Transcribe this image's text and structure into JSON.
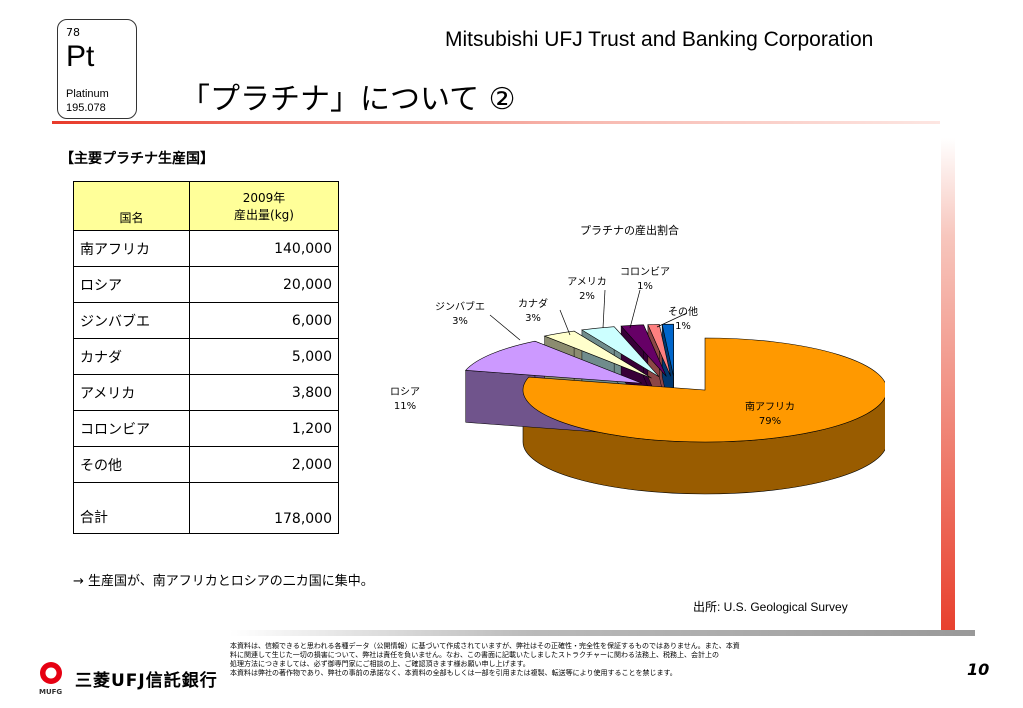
{
  "element": {
    "number": "78",
    "symbol": "Pt",
    "name": "Platinum",
    "mass": "195.078"
  },
  "header": {
    "company": "Mitsubishi UFJ Trust and Banking Corporation",
    "title": "「プラチナ」について ②"
  },
  "section": {
    "label": "【主要プラチナ生産国】"
  },
  "table": {
    "col1_header": "国名",
    "col2_header_line1": "2009年",
    "col2_header_line2": "産出量(kg)",
    "rows": [
      {
        "country": "南アフリカ",
        "value": "140,000"
      },
      {
        "country": "ロシア",
        "value": "20,000"
      },
      {
        "country": "ジンバブエ",
        "value": "6,000"
      },
      {
        "country": "カナダ",
        "value": "5,000"
      },
      {
        "country": "アメリカ",
        "value": "3,800"
      },
      {
        "country": "コロンビア",
        "value": "1,200"
      },
      {
        "country": "その他",
        "value": "2,000"
      }
    ],
    "total": {
      "country": "合計",
      "value": "178,000"
    }
  },
  "chart_data": {
    "type": "pie",
    "title": "プラチナの産出割合",
    "categories": [
      "南アフリカ",
      "ロシア",
      "ジンバブエ",
      "カナダ",
      "アメリカ",
      "コロンビア",
      "その他"
    ],
    "values": [
      79,
      11,
      3,
      3,
      2,
      1,
      1
    ],
    "labels": [
      "79%",
      "11%",
      "3%",
      "3%",
      "2%",
      "1%",
      "1%"
    ],
    "colors": [
      "#ff9900",
      "#cc99ff",
      "#ffffcc",
      "#ccffff",
      "#660066",
      "#ff8080",
      "#0066cc"
    ]
  },
  "note": "→  生産国が、南アフリカとロシアの二カ国に集中。",
  "source": "出所: U.S. Geological Survey",
  "footer": {
    "disclaimer1": "本資料は、信頼できると思われる各種データ（公開情報）に基づいて作成されていますが、弊社はその正確性・完全性を保証するものではありません。また、本資",
    "disclaimer2": "料に関連して生じた一切の損害について、弊社は責任を負いません。なお、この書面に記載いたしましたストラクチャーに関わる法務上、税務上、会計上の",
    "disclaimer3": "処理方法につきましては、必ず御専門家にご相談の上、ご確認頂きます様お願い申し上げます。",
    "disclaimer4": "本資料は弊社の著作物であり、弊社の事前の承諾なく、本資料の全部もしくは一部を引用または複製、転送等により使用することを禁じます。",
    "page": "10",
    "logo_text": "三菱UFJ信託銀行",
    "logo_sub": "MUFG"
  }
}
